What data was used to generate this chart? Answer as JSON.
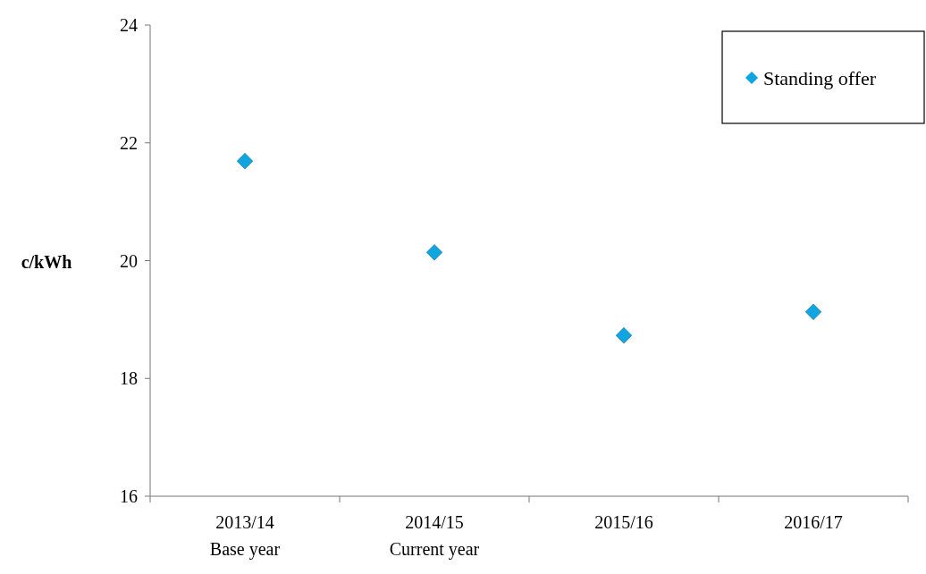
{
  "chart_data": {
    "type": "scatter",
    "ylabel": "c/kWh",
    "categories": [
      "2013/14\nBase year",
      "2014/15\nCurrent year",
      "2015/16",
      "2016/17"
    ],
    "series": [
      {
        "name": "Standing offer",
        "color": "#0ea5e0",
        "values": [
          21.69,
          20.14,
          18.73,
          19.13
        ]
      }
    ],
    "ylim": [
      16,
      24
    ],
    "yticks": [
      16,
      18,
      20,
      22,
      24
    ],
    "grid": false,
    "legend": "top right",
    "marker": "diamond"
  }
}
